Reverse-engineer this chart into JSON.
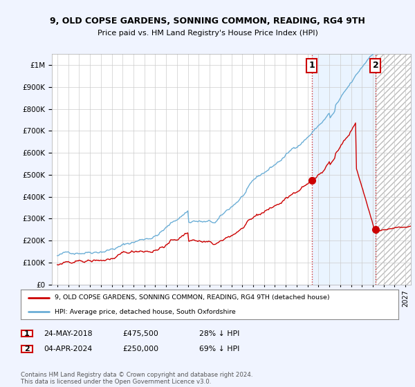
{
  "title": "9, OLD COPSE GARDENS, SONNING COMMON, READING, RG4 9TH",
  "subtitle": "Price paid vs. HM Land Registry's House Price Index (HPI)",
  "legend_line1": "9, OLD COPSE GARDENS, SONNING COMMON, READING, RG4 9TH (detached house)",
  "legend_line2": "HPI: Average price, detached house, South Oxfordshire",
  "transaction1_date": "24-MAY-2018",
  "transaction1_price": "£475,500",
  "transaction1_hpi": "28% ↓ HPI",
  "transaction2_date": "04-APR-2024",
  "transaction2_price": "£250,000",
  "transaction2_hpi": "69% ↓ HPI",
  "footer": "Contains HM Land Registry data © Crown copyright and database right 2024.\nThis data is licensed under the Open Government Licence v3.0.",
  "hpi_color": "#6baed6",
  "price_color": "#cc0000",
  "background_color": "#f0f4ff",
  "plot_bg_color": "#ffffff",
  "highlight_bg_color": "#ddeeff",
  "grid_color": "#cccccc",
  "transaction1_x": 2018.38,
  "transaction2_x": 2024.25,
  "transaction1_y": 475500,
  "transaction2_y": 250000,
  "ylim": [
    0,
    1050000
  ],
  "xlim": [
    1994.5,
    2027.5
  ],
  "hatch_start": 2024.25,
  "hatch_end": 2027.5,
  "seed": 42
}
